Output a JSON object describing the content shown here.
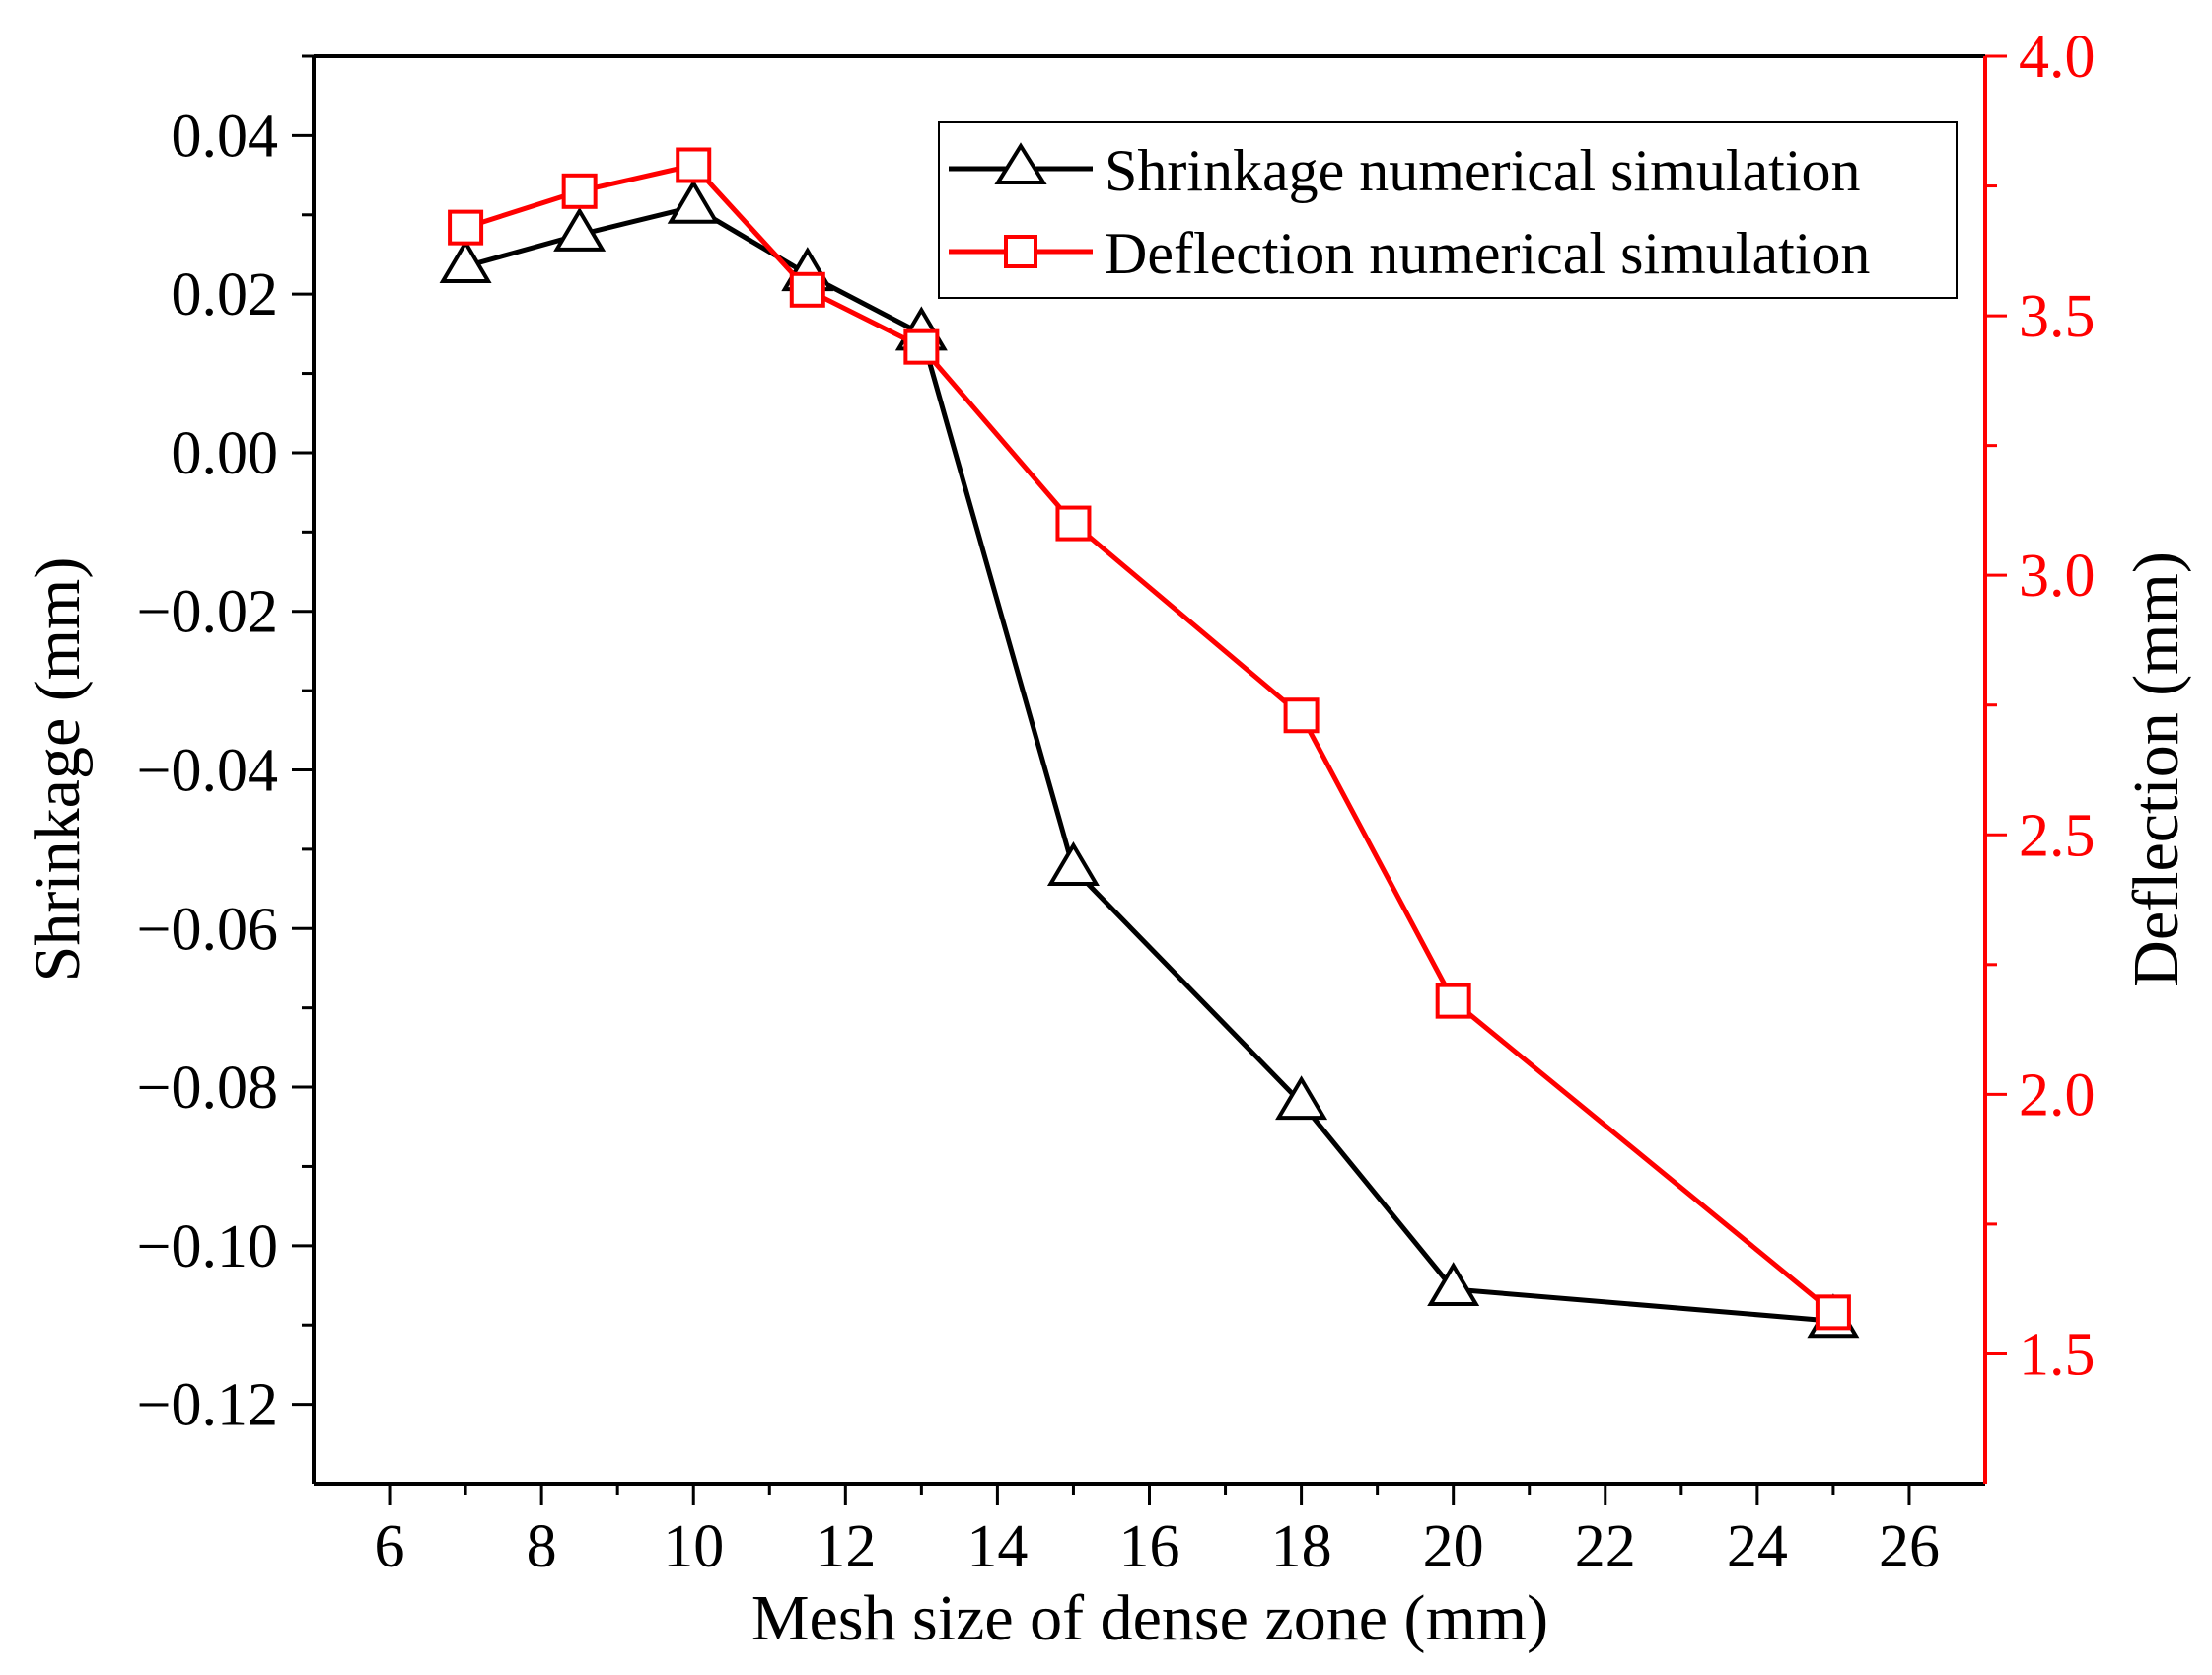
{
  "chart_data": {
    "type": "line",
    "title": "",
    "xlabel": "Mesh size of dense zone (mm)",
    "ylabel_left": "Shrinkage (mm)",
    "ylabel_right": "Deflection (mm)",
    "xlim": [
      5,
      27
    ],
    "ylim_left": [
      -0.13,
      0.05
    ],
    "ylim_right": [
      1.25,
      4.0
    ],
    "x_ticks": [
      6,
      8,
      10,
      12,
      14,
      16,
      18,
      20,
      22,
      24,
      26
    ],
    "x_tick_labels": [
      "6",
      "8",
      "10",
      "12",
      "14",
      "16",
      "18",
      "20",
      "22",
      "24",
      "26"
    ],
    "y_left_ticks": [
      0.04,
      0.02,
      0.0,
      -0.02,
      -0.04,
      -0.06,
      -0.08,
      -0.1,
      -0.12
    ],
    "y_left_tick_labels": [
      "0.04",
      "0.02",
      "0.00",
      "−0.02",
      "−0.04",
      "−0.06",
      "−0.08",
      "−0.10",
      "−0.12"
    ],
    "y_right_ticks": [
      4.0,
      3.5,
      3.0,
      2.5,
      2.0,
      1.5
    ],
    "y_right_tick_labels": [
      "4.0",
      "3.5",
      "3.0",
      "2.5",
      "2.0",
      "1.5"
    ],
    "grid": false,
    "legend_position": "top-right",
    "series": [
      {
        "name": "Shrinkage numerical simulation",
        "axis": "left",
        "color": "#000000",
        "marker": "triangle",
        "x": [
          7,
          8.5,
          10,
          11.5,
          13,
          15,
          18,
          20,
          25
        ],
        "y": [
          0.0235,
          0.0275,
          0.031,
          0.0225,
          0.015,
          -0.0525,
          -0.082,
          -0.1055,
          -0.1095
        ]
      },
      {
        "name": "Deflection numerical simulation",
        "axis": "right",
        "color": "#ff0000",
        "marker": "square",
        "x": [
          7,
          8.5,
          10,
          11.5,
          13,
          15,
          18,
          20,
          25
        ],
        "y": [
          3.67,
          3.74,
          3.79,
          3.55,
          3.44,
          3.1,
          2.73,
          2.18,
          1.58
        ]
      }
    ]
  }
}
